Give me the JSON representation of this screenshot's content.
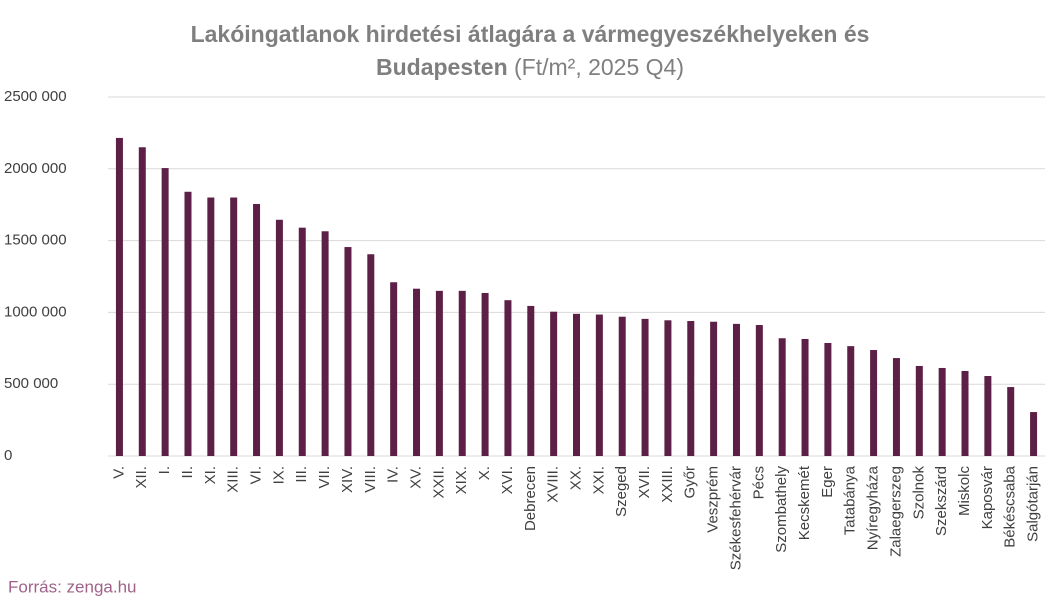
{
  "chart_data": {
    "type": "bar",
    "title": [
      "Lakóingatlanok hirdetési átlagára a vármegyeszékhelyeken és",
      "Budapesten"
    ],
    "subtitle": "(Ft/m², 2025 Q4)",
    "source": "Forrás: zenga.hu",
    "categories": [
      "V.",
      "XII.",
      "I.",
      "II.",
      "XI.",
      "XIII.",
      "VI.",
      "IX.",
      "III.",
      "VII.",
      "XIV.",
      "VIII.",
      "IV.",
      "XV.",
      "XXII.",
      "XIX.",
      "X.",
      "XVI.",
      "Debrecen",
      "XVIII.",
      "XX.",
      "XXI.",
      "Szeged",
      "XVII.",
      "XXIII.",
      "Győr",
      "Veszprém",
      "Székesfehérvár",
      "Pécs",
      "Szombathely",
      "Kecskemét",
      "Eger",
      "Tatabánya",
      "Nyíregyháza",
      "Zalaegerszeg",
      "Szolnok",
      "Szekszárd",
      "Miskolc",
      "Kaposvár",
      "Békéscsaba",
      "Salgótarján"
    ],
    "values": [
      2215000,
      2150000,
      2005000,
      1840000,
      1800000,
      1800000,
      1755000,
      1645000,
      1590000,
      1565000,
      1455000,
      1405000,
      1210000,
      1165000,
      1150000,
      1150000,
      1135000,
      1085000,
      1045000,
      1005000,
      990000,
      985000,
      970000,
      955000,
      945000,
      940000,
      935000,
      920000,
      912000,
      820000,
      815000,
      787000,
      765000,
      738000,
      682000,
      627000,
      613000,
      592000,
      557000,
      480000,
      306000
    ],
    "color": "#5c1f45",
    "ylim": [
      0,
      2500000
    ],
    "yticks": [
      0,
      {
        "value": 500000,
        "label": "500 000"
      },
      {
        "value": 1000000,
        "label": "1000 000"
      },
      {
        "value": 1500000,
        "label": "1500 000"
      },
      {
        "value": 2000000,
        "label": "2000 000"
      },
      {
        "value": 2500000,
        "label": "2500 000"
      }
    ],
    "grid": true
  }
}
